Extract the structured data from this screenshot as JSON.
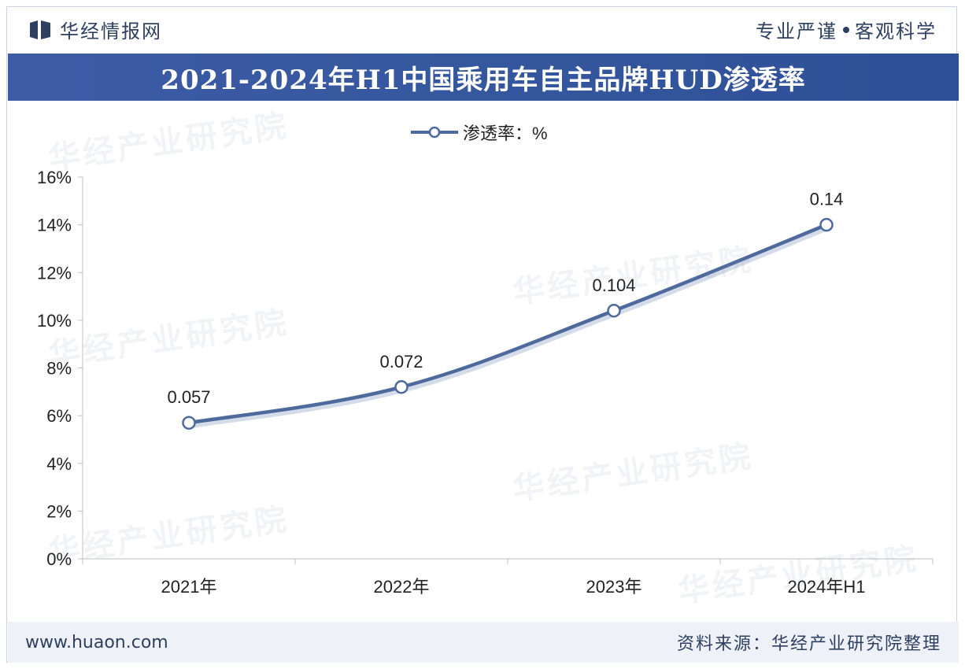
{
  "header": {
    "brand_name": "华经情报网",
    "slogan_left": "专业严谨",
    "slogan_right": "客观科学"
  },
  "title": "2021-2024年H1中国乘用车自主品牌HUD渗透率",
  "colors": {
    "accent": "#3b5aa3",
    "line": "#4e6a9c",
    "text": "#2f3f60"
  },
  "chart_data": {
    "type": "line",
    "categories": [
      "2021年",
      "2022年",
      "2023年",
      "2024年H1"
    ],
    "series": [
      {
        "name": "渗透率：%",
        "values": [
          0.057,
          0.072,
          0.104,
          0.14
        ]
      }
    ],
    "data_labels": [
      "0.057",
      "0.072",
      "0.104",
      "0.14"
    ],
    "ylim": [
      0,
      0.16
    ],
    "yticks": [
      0,
      0.02,
      0.04,
      0.06,
      0.08,
      0.1,
      0.12,
      0.14,
      0.16
    ],
    "ytick_labels": [
      "0%",
      "2%",
      "4%",
      "6%",
      "8%",
      "10%",
      "12%",
      "14%",
      "16%"
    ],
    "legend_position": "top-center",
    "grid": false
  },
  "watermark": {
    "text": "华经产业研究院",
    "url_text": "www.huaon.com"
  },
  "footer": {
    "url": "www.huaon.com",
    "source": "资料来源：华经产业研究院整理"
  }
}
